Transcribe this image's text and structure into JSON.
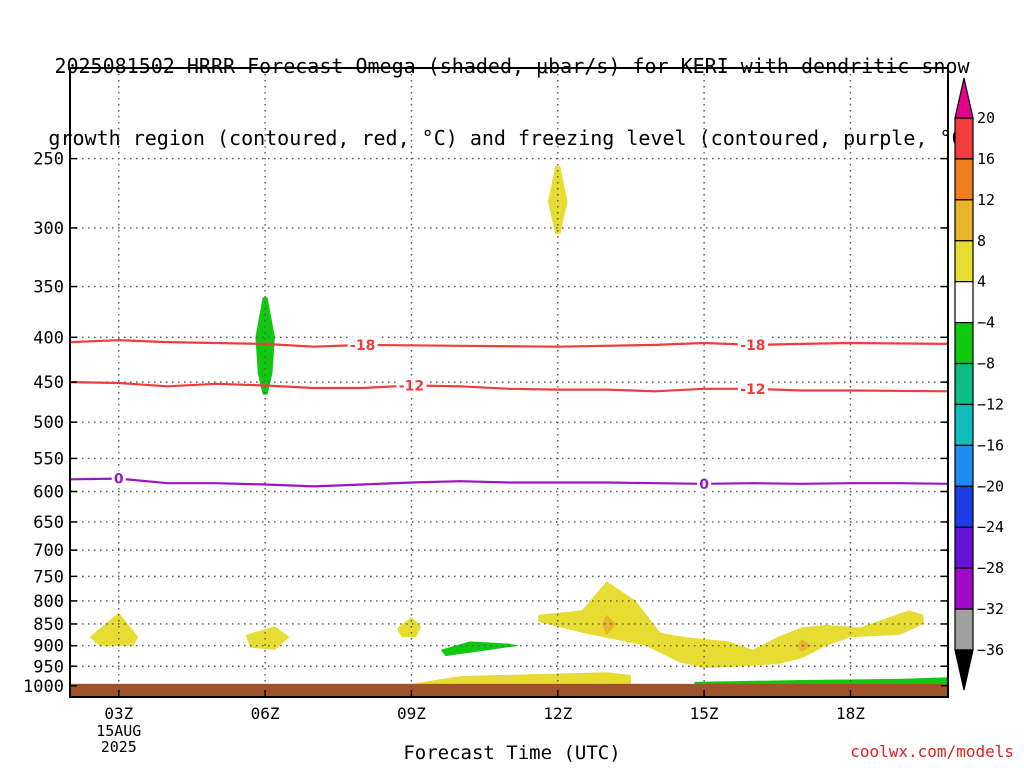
{
  "title_line1": "2025081502 HRRR Forecast Omega (shaded, μbar/s) for KERI with dendritic snow",
  "title_line2": "growth region (contoured, red, °C) and freezing level (contoured, purple, °C)",
  "credit": "coolwx.com/models",
  "chart_data": {
    "type": "heatmap",
    "xlabel": "Forecast Time (UTC)",
    "ylabel": "",
    "x_ticks": [
      "03Z",
      "06Z",
      "09Z",
      "12Z",
      "15Z",
      "18Z"
    ],
    "x_tick_hours": [
      3,
      6,
      9,
      12,
      15,
      18
    ],
    "x_range_hours": [
      2,
      20
    ],
    "date_label": [
      "15AUG",
      "2025"
    ],
    "y_ticks": [
      250,
      300,
      350,
      400,
      450,
      500,
      550,
      600,
      650,
      700,
      750,
      800,
      850,
      900,
      950,
      1000
    ],
    "y_range_mb": [
      200,
      1030
    ],
    "y_scale": "log",
    "grid": true,
    "colorbar": {
      "labels": [
        "20",
        "16",
        "12",
        "8",
        "4",
        "−4",
        "−8",
        "−12",
        "−16",
        "−20",
        "−24",
        "−28",
        "−32",
        "−36"
      ],
      "bins": [
        {
          "from": 16,
          "to": 20,
          "color": "#f03c3c"
        },
        {
          "from": 12,
          "to": 16,
          "color": "#f07d1e"
        },
        {
          "from": 8,
          "to": 12,
          "color": "#e8b42c"
        },
        {
          "from": 4,
          "to": 8,
          "color": "#e6dc32"
        },
        {
          "from": -4,
          "to": 4,
          "color": "#ffffff"
        },
        {
          "from": -8,
          "to": -4,
          "color": "#10c810"
        },
        {
          "from": -12,
          "to": -8,
          "color": "#0cbc84"
        },
        {
          "from": -16,
          "to": -12,
          "color": "#10bcbc"
        },
        {
          "from": -20,
          "to": -16,
          "color": "#1e8cf0"
        },
        {
          "from": -24,
          "to": -20,
          "color": "#1e3ce6"
        },
        {
          "from": -28,
          "to": -24,
          "color": "#6414d2"
        },
        {
          "from": -32,
          "to": -28,
          "color": "#a00ac8"
        },
        {
          "from": -36,
          "to": -32,
          "color": "#a0a0a0"
        }
      ],
      "top_arrow_color": "#e6008c",
      "bottom_arrow_color": "#000000"
    },
    "contours": [
      {
        "label": "-18",
        "color": "#f03c3c",
        "label_hours": [
          8.0,
          16.0
        ],
        "points": [
          [
            2,
            405
          ],
          [
            3,
            403
          ],
          [
            4,
            405
          ],
          [
            5,
            406
          ],
          [
            6,
            407
          ],
          [
            7,
            410
          ],
          [
            8,
            408
          ],
          [
            10,
            409
          ],
          [
            12,
            410
          ],
          [
            14,
            408
          ],
          [
            15,
            406
          ],
          [
            16,
            408
          ],
          [
            17,
            407
          ],
          [
            18,
            406
          ],
          [
            20,
            407
          ]
        ]
      },
      {
        "label": "-12",
        "color": "#f03c3c",
        "label_hours": [
          9.0,
          16.0
        ],
        "points": [
          [
            2,
            450
          ],
          [
            3,
            451
          ],
          [
            4,
            455
          ],
          [
            5,
            452
          ],
          [
            6,
            454
          ],
          [
            7,
            457
          ],
          [
            8,
            457
          ],
          [
            9,
            454
          ],
          [
            10,
            455
          ],
          [
            11,
            458
          ],
          [
            12,
            459
          ],
          [
            13,
            459
          ],
          [
            14,
            461
          ],
          [
            15,
            458
          ],
          [
            16,
            458
          ],
          [
            17,
            460
          ],
          [
            18,
            460
          ],
          [
            20,
            461
          ]
        ]
      },
      {
        "label": "0",
        "color": "#9c14c8",
        "label_hours": [
          3.0,
          15.0
        ],
        "points": [
          [
            2,
            581
          ],
          [
            3,
            580
          ],
          [
            4,
            587
          ],
          [
            5,
            587
          ],
          [
            6,
            589
          ],
          [
            7,
            592
          ],
          [
            8,
            589
          ],
          [
            9,
            586
          ],
          [
            10,
            584
          ],
          [
            11,
            586
          ],
          [
            12,
            586
          ],
          [
            13,
            586
          ],
          [
            14,
            587
          ],
          [
            15,
            588
          ],
          [
            16,
            587
          ],
          [
            17,
            588
          ],
          [
            18,
            587
          ],
          [
            19,
            587
          ],
          [
            20,
            588
          ]
        ]
      }
    ],
    "shaded_regions": [
      {
        "value": 5,
        "points": [
          [
            11.95,
            255
          ],
          [
            12.05,
            255
          ],
          [
            12.2,
            280
          ],
          [
            12.05,
            305
          ],
          [
            11.95,
            305
          ],
          [
            11.8,
            280
          ]
        ]
      },
      {
        "value": -5,
        "points": [
          [
            5.95,
            360
          ],
          [
            6.05,
            360
          ],
          [
            6.2,
            400
          ],
          [
            6.15,
            440
          ],
          [
            6.05,
            465
          ],
          [
            5.95,
            465
          ],
          [
            5.85,
            440
          ],
          [
            5.8,
            400
          ]
        ]
      },
      {
        "value": 5,
        "points": [
          [
            2.4,
            880
          ],
          [
            3.0,
            825
          ],
          [
            3.4,
            880
          ],
          [
            3.3,
            900
          ],
          [
            2.6,
            900
          ]
        ]
      },
      {
        "value": 5,
        "points": [
          [
            5.6,
            875
          ],
          [
            6.2,
            855
          ],
          [
            6.5,
            880
          ],
          [
            6.2,
            910
          ],
          [
            5.7,
            905
          ]
        ]
      },
      {
        "value": 5,
        "points": [
          [
            8.7,
            860
          ],
          [
            9.0,
            835
          ],
          [
            9.2,
            855
          ],
          [
            9.1,
            880
          ],
          [
            8.8,
            880
          ]
        ]
      },
      {
        "value": -5,
        "points": [
          [
            9.6,
            910
          ],
          [
            10.2,
            890
          ],
          [
            11.0,
            895
          ],
          [
            11.2,
            900
          ],
          [
            10.3,
            915
          ],
          [
            9.7,
            925
          ]
        ]
      },
      {
        "value": 5,
        "points": [
          [
            11.6,
            830
          ],
          [
            12.5,
            820
          ],
          [
            13.0,
            760
          ],
          [
            13.6,
            800
          ],
          [
            14.1,
            870
          ],
          [
            14.6,
            880
          ],
          [
            15.5,
            890
          ],
          [
            16.0,
            910
          ],
          [
            16.5,
            880
          ],
          [
            17.0,
            858
          ],
          [
            17.5,
            852
          ],
          [
            18.2,
            858
          ],
          [
            18.8,
            835
          ],
          [
            19.2,
            820
          ],
          [
            19.5,
            830
          ],
          [
            19.5,
            850
          ],
          [
            19.0,
            875
          ],
          [
            18.0,
            880
          ],
          [
            17.5,
            900
          ],
          [
            17.0,
            930
          ],
          [
            16.5,
            945
          ],
          [
            15.0,
            955
          ],
          [
            14.5,
            940
          ],
          [
            13.8,
            900
          ],
          [
            12.5,
            870
          ],
          [
            11.6,
            845
          ]
        ]
      },
      {
        "value": 9,
        "points": [
          [
            12.9,
            850
          ],
          [
            13.0,
            830
          ],
          [
            13.2,
            850
          ],
          [
            13.0,
            875
          ]
        ]
      },
      {
        "value": 9,
        "points": [
          [
            16.9,
            900
          ],
          [
            17.0,
            885
          ],
          [
            17.2,
            900
          ],
          [
            17.0,
            915
          ]
        ]
      },
      {
        "value": 5,
        "points": [
          [
            2.0,
            995
          ],
          [
            9.0,
            995
          ],
          [
            10.0,
            975
          ],
          [
            13.0,
            965
          ],
          [
            13.5,
            972
          ],
          [
            13.5,
            995
          ],
          [
            13.5,
            1000
          ],
          [
            2.0,
            1000
          ]
        ]
      },
      {
        "value": -5,
        "points": [
          [
            14.8,
            990
          ],
          [
            17.0,
            985
          ],
          [
            19.0,
            982
          ],
          [
            20.0,
            978
          ],
          [
            20.0,
            1000
          ],
          [
            14.8,
            1000
          ]
        ]
      }
    ],
    "ground_level_mb": 995,
    "ground_color": "#a0522d"
  }
}
